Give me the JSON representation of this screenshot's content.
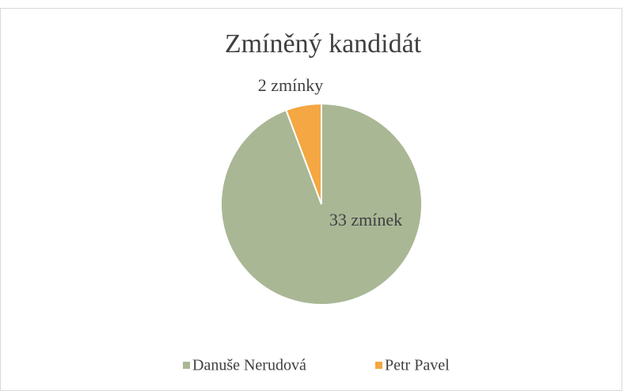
{
  "chart_data": {
    "type": "pie",
    "title": "Zmíněný kandidát",
    "categories": [
      "Danuše Nerudová",
      "Petr Pavel"
    ],
    "values": [
      33,
      2
    ],
    "value_labels": [
      "33 zmínek",
      "2 zmínky"
    ],
    "colors": [
      "#a9b795",
      "#f4a742"
    ],
    "legend": "bottom"
  }
}
